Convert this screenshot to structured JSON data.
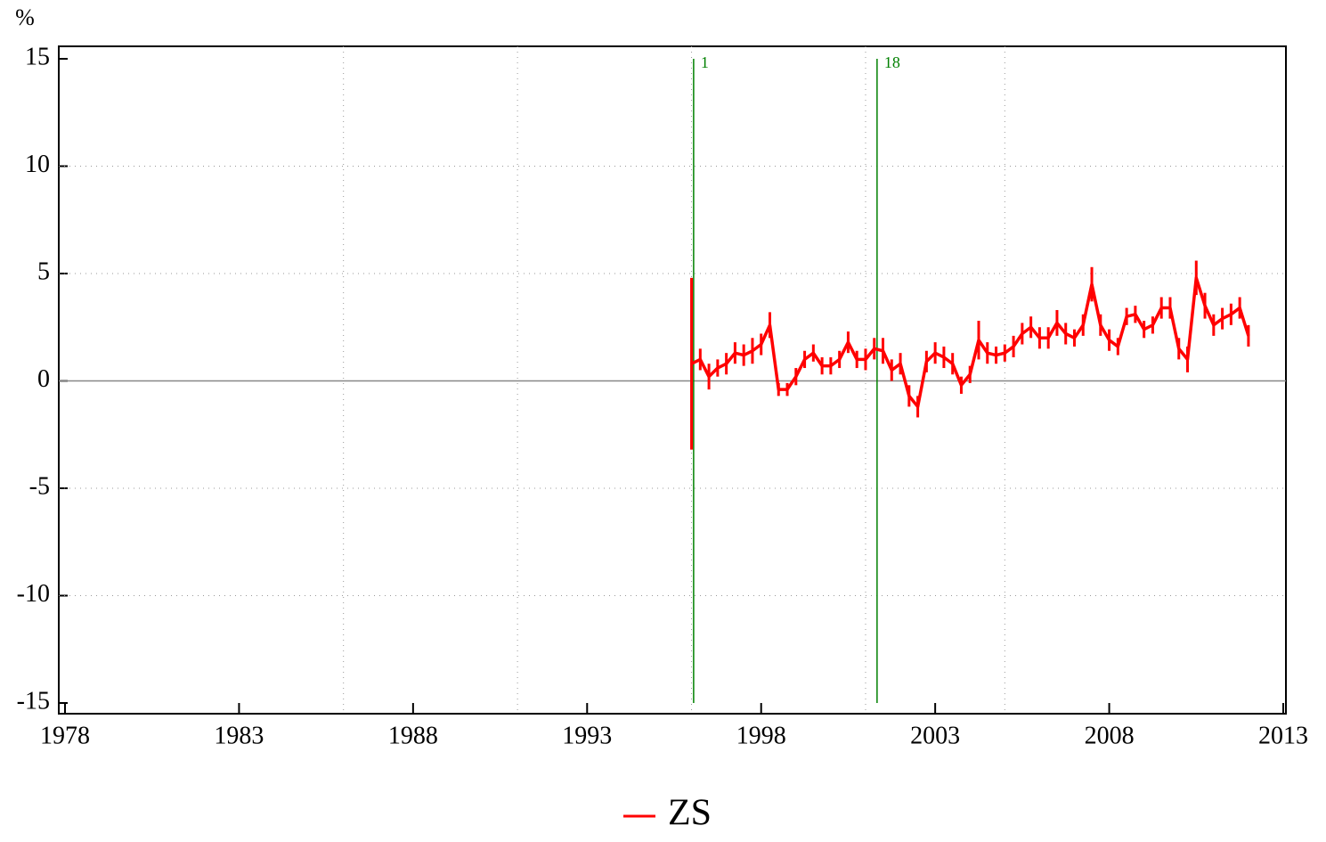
{
  "chart_data": {
    "type": "line",
    "y_label": "%",
    "x": [
      1996,
      1996.25,
      1996.5,
      1996.75,
      1997,
      1997.25,
      1997.5,
      1997.75,
      1998,
      1998.25,
      1998.5,
      1998.75,
      1999,
      1999.25,
      1999.5,
      1999.75,
      2000,
      2000.25,
      2000.5,
      2000.75,
      2001,
      2001.25,
      2001.5,
      2001.75,
      2002,
      2002.25,
      2002.5,
      2002.75,
      2003,
      2003.25,
      2003.5,
      2003.75,
      2004,
      2004.25,
      2004.5,
      2004.75,
      2005,
      2005.25,
      2005.5,
      2005.75,
      2006,
      2006.25,
      2006.5,
      2006.75,
      2007,
      2007.25,
      2007.5,
      2007.75,
      2008,
      2008.25,
      2008.5,
      2008.75,
      2009,
      2009.25,
      2009.5,
      2009.75,
      2010,
      2010.25,
      2010.5,
      2010.75,
      2011,
      2011.25,
      2011.5,
      2011.75,
      2012
    ],
    "series": [
      {
        "name": "ZS",
        "color": "#ff0000",
        "values": [
          0.8,
          1.0,
          0.2,
          0.6,
          0.8,
          1.3,
          1.2,
          1.4,
          1.7,
          2.6,
          -0.4,
          -0.4,
          0.2,
          1.0,
          1.3,
          0.7,
          0.7,
          1.0,
          1.8,
          1.0,
          1.0,
          1.5,
          1.4,
          0.5,
          0.8,
          -0.7,
          -1.2,
          0.9,
          1.3,
          1.1,
          0.8,
          -0.2,
          0.3,
          1.9,
          1.3,
          1.2,
          1.3,
          1.6,
          2.2,
          2.5,
          2.0,
          2.0,
          2.7,
          2.2,
          2.0,
          2.6,
          4.5,
          2.6,
          1.9,
          1.6,
          3.0,
          3.1,
          2.4,
          2.6,
          3.4,
          3.4,
          1.5,
          1.0,
          4.8,
          3.5,
          2.6,
          2.9,
          3.1,
          3.4,
          2.1
        ],
        "errors": [
          4.0,
          0.5,
          0.6,
          0.4,
          0.5,
          0.5,
          0.5,
          0.6,
          0.5,
          0.6,
          0.3,
          0.3,
          0.4,
          0.4,
          0.4,
          0.4,
          0.4,
          0.4,
          0.5,
          0.4,
          0.5,
          0.5,
          0.6,
          0.5,
          0.5,
          0.5,
          0.5,
          0.5,
          0.5,
          0.5,
          0.5,
          0.4,
          0.4,
          0.9,
          0.5,
          0.4,
          0.4,
          0.5,
          0.5,
          0.5,
          0.5,
          0.5,
          0.6,
          0.5,
          0.4,
          0.5,
          0.8,
          0.5,
          0.5,
          0.4,
          0.4,
          0.4,
          0.4,
          0.4,
          0.5,
          0.5,
          0.5,
          0.6,
          0.8,
          0.6,
          0.5,
          0.5,
          0.5,
          0.5,
          0.5
        ]
      }
    ],
    "xlim": [
      1978,
      2013
    ],
    "xticks": [
      1978,
      1983,
      1988,
      1993,
      1998,
      2003,
      2008,
      2013
    ],
    "ylim": [
      -15,
      15
    ],
    "yticks": [
      -15,
      -10,
      -5,
      0,
      5,
      10,
      15
    ],
    "grid": true,
    "x_grid_lines": [
      1986,
      1991,
      1996,
      2001,
      2005
    ],
    "zero_line": true,
    "markers": [
      {
        "x": 1996.06,
        "label": "1"
      },
      {
        "x": 2001.33,
        "label": "18"
      }
    ],
    "marker_color": "#008000",
    "legend": "bottom"
  }
}
